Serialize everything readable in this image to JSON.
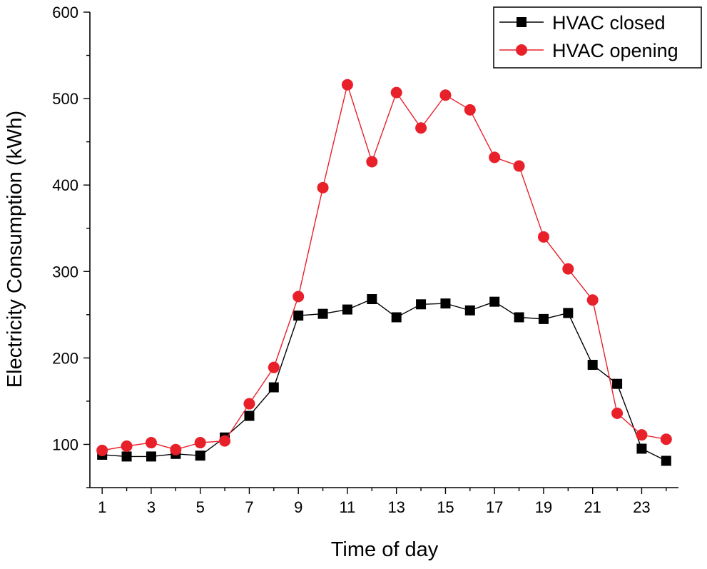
{
  "chart_data": {
    "type": "line",
    "title": "",
    "xlabel": "Time of day",
    "ylabel": "Electricity Consumption (kWh)",
    "xlim": [
      0.5,
      24.5
    ],
    "ylim": [
      50,
      600
    ],
    "x_ticks": [
      1,
      3,
      5,
      7,
      9,
      11,
      13,
      15,
      17,
      19,
      21,
      23
    ],
    "x_tick_labels": [
      "1",
      "3",
      "5",
      "7",
      "9",
      "11",
      "13",
      "15",
      "17",
      "19",
      "21",
      "23"
    ],
    "y_ticks": [
      100,
      200,
      300,
      400,
      500,
      600
    ],
    "y_tick_labels": [
      "100",
      "200",
      "300",
      "400",
      "500",
      "600"
    ],
    "grid": false,
    "legend_position": "top-right",
    "x": [
      1,
      2,
      3,
      4,
      5,
      6,
      7,
      8,
      9,
      10,
      11,
      12,
      13,
      14,
      15,
      16,
      17,
      18,
      19,
      20,
      21,
      22,
      23,
      24
    ],
    "series": [
      {
        "name": "HVAC closed",
        "color": "#000000",
        "marker": "square",
        "values": [
          88,
          86,
          86,
          89,
          87,
          108,
          133,
          166,
          249,
          251,
          256,
          268,
          247,
          262,
          263,
          255,
          265,
          247,
          245,
          252,
          192,
          170,
          95,
          81
        ]
      },
      {
        "name": "HVAC opening",
        "color": "#e8202a",
        "marker": "circle",
        "values": [
          93,
          98,
          102,
          94,
          102,
          104,
          147,
          189,
          271,
          397,
          516,
          427,
          507,
          466,
          504,
          487,
          432,
          422,
          340,
          303,
          267,
          136,
          111,
          106
        ]
      }
    ]
  }
}
